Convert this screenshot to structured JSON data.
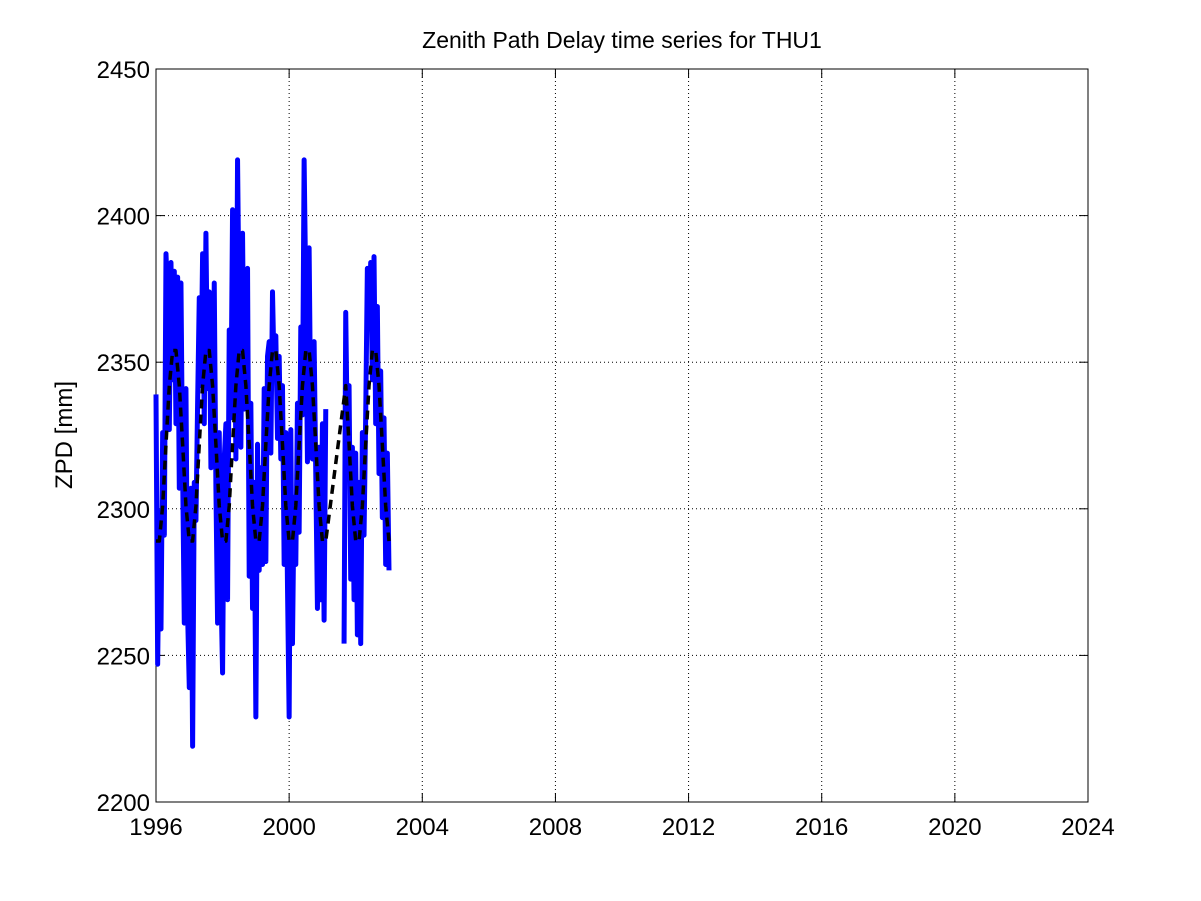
{
  "chart_data": {
    "type": "line",
    "title": "Zenith Path Delay time series for THU1",
    "ylabel": "ZPD [mm]",
    "xlim": [
      1996,
      2024
    ],
    "xticks": [
      1996,
      2000,
      2004,
      2008,
      2012,
      2016,
      2020,
      2024
    ],
    "ylim": [
      2200,
      2450
    ],
    "yticks": [
      2200,
      2250,
      2300,
      2350,
      2400,
      2450
    ],
    "grid": true,
    "series": [
      {
        "color": "#0000ff",
        "style": "solid",
        "x": [
          1996,
          1996.05,
          1996.1,
          1996.15,
          1996.2,
          1996.25,
          1996.3,
          1996.35,
          1996.4,
          1996.45,
          1996.5,
          1996.55,
          1996.6,
          1996.65,
          1996.7,
          1996.75,
          1996.8,
          1996.85,
          1996.9,
          1996.95,
          1997,
          1997.05,
          1997.1,
          1997.15,
          1997.2,
          1997.25,
          1997.3,
          1997.35,
          1997.4,
          1997.45,
          1997.5,
          1997.55,
          1997.6,
          1997.65,
          1997.7,
          1997.75,
          1997.8,
          1997.85,
          1997.9,
          1997.95,
          1998,
          1998.05,
          1998.1,
          1998.15,
          1998.2,
          1998.25,
          1998.3,
          1998.35,
          1998.4,
          1998.45,
          1998.5,
          1998.55,
          1998.6,
          1998.65,
          1998.7,
          1998.75,
          1998.8,
          1998.85,
          1998.9,
          1998.95,
          1999,
          1999.05,
          1999.1,
          1999.15,
          1999.2,
          1999.25,
          1999.3,
          1999.35,
          1999.4,
          1999.45,
          1999.5,
          1999.55,
          1999.6,
          1999.65,
          1999.7,
          1999.75,
          1999.8,
          1999.85,
          1999.9,
          1999.95,
          2000,
          2000.05,
          2000.1,
          2000.15,
          2000.2,
          2000.25,
          2000.3,
          2000.35,
          2000.4,
          2000.45,
          2000.5,
          2000.55,
          2000.6,
          2000.65,
          2000.7,
          2000.75,
          2000.8,
          2000.85,
          2000.9,
          2000.95,
          2001,
          2001.05,
          2001.1,
          2001.4,
          2001.65,
          2001.7,
          2001.75,
          2001.8,
          2001.85,
          2001.9,
          2001.95,
          2002,
          2002.05,
          2002.1,
          2002.15,
          2002.2,
          2002.25,
          2002.3,
          2002.35,
          2002.4,
          2002.45,
          2002.5,
          2002.55,
          2002.6,
          2002.65,
          2002.7,
          2002.75,
          2002.8,
          2002.85,
          2002.9,
          2002.95,
          2003
        ],
        "values": [
          2339,
          2247,
          2299,
          2259,
          2326,
          2291,
          2387,
          2372,
          2327,
          2384,
          2344,
          2381,
          2329,
          2379,
          2307,
          2377,
          2312,
          2261,
          2341,
          2264,
          2239,
          2307,
          2219,
          2309,
          2296,
          2336,
          2372,
          2342,
          2387,
          2329,
          2394,
          2341,
          2374,
          2314,
          2317,
          2377,
          2307,
          2261,
          2326,
          2274,
          2244,
          2317,
          2329,
          2269,
          2361,
          2331,
          2402,
          2382,
          2317,
          2419,
          2364,
          2321,
          2394,
          2334,
          2362,
          2382,
          2277,
          2336,
          2266,
          2309,
          2229,
          2322,
          2279,
          2314,
          2281,
          2341,
          2282,
          2352,
          2357,
          2319,
          2374,
          2346,
          2359,
          2324,
          2352,
          2317,
          2342,
          2281,
          2326,
          2274,
          2229,
          2327,
          2254,
          2304,
          2281,
          2336,
          2292,
          2362,
          2332,
          2419,
          2374,
          2316,
          2389,
          2329,
          2317,
          2357,
          2312,
          2266,
          2321,
          2269,
          2329,
          2262,
          2334,
          null,
          2254,
          2367,
          2322,
          2342,
          2276,
          2321,
          2269,
          2319,
          2257,
          2309,
          2254,
          2326,
          2291,
          2332,
          2382,
          2362,
          2384,
          2344,
          2386,
          2329,
          2369,
          2312,
          2347,
          2297,
          2331,
          2281,
          2319,
          2279
        ]
      },
      {
        "color": "#000000",
        "style": "dashed",
        "x": [
          1996,
          1996.1,
          1996.2,
          1996.3,
          1996.4,
          1996.5,
          1996.6,
          1996.7,
          1996.8,
          1996.9,
          1997,
          1997.1,
          1997.2,
          1997.3,
          1997.4,
          1997.5,
          1997.6,
          1997.7,
          1997.8,
          1997.9,
          1998,
          1998.1,
          1998.2,
          1998.3,
          1998.4,
          1998.5,
          1998.6,
          1998.7,
          1998.8,
          1998.9,
          1999,
          1999.1,
          1999.2,
          1999.3,
          1999.4,
          1999.5,
          1999.6,
          1999.7,
          1999.8,
          1999.9,
          2000,
          2000.1,
          2000.2,
          2000.3,
          2000.4,
          2000.5,
          2000.6,
          2000.7,
          2000.8,
          2000.9,
          2001,
          2001.1,
          2001.7,
          2001.8,
          2001.9,
          2002,
          2002.1,
          2002.2,
          2002.3,
          2002.4,
          2002.5,
          2002.6,
          2002.7,
          2002.8,
          2002.9,
          2003
        ],
        "values": [
          2289,
          2289,
          2301,
          2322,
          2342,
          2354,
          2354,
          2342,
          2322,
          2301,
          2289,
          2289,
          2301,
          2322,
          2342,
          2354,
          2354,
          2342,
          2322,
          2301,
          2289,
          2289,
          2301,
          2322,
          2342,
          2354,
          2354,
          2342,
          2322,
          2301,
          2289,
          2289,
          2301,
          2322,
          2342,
          2354,
          2354,
          2342,
          2322,
          2301,
          2289,
          2289,
          2301,
          2322,
          2342,
          2354,
          2354,
          2342,
          2322,
          2301,
          2289,
          2289,
          2342,
          2322,
          2301,
          2289,
          2289,
          2301,
          2322,
          2342,
          2354,
          2354,
          2342,
          2322,
          2301,
          2289
        ]
      }
    ]
  }
}
